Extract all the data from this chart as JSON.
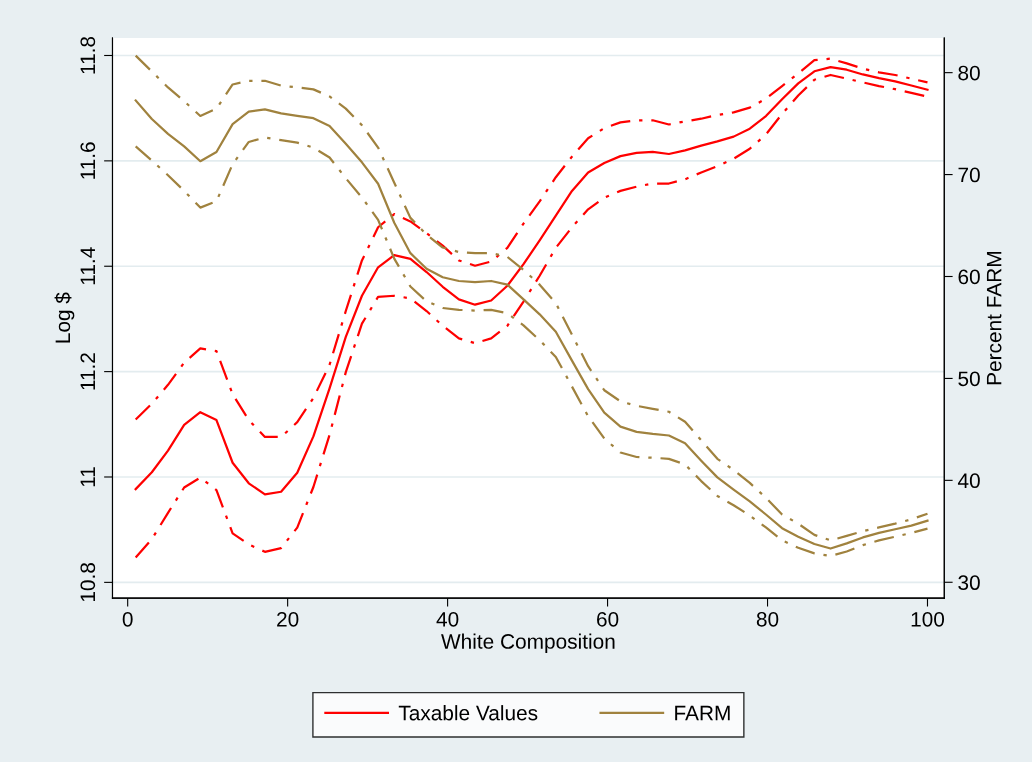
{
  "chart_data": {
    "type": "line",
    "xlabel": "White Composition",
    "ylabel": "Log $",
    "y2label": "Percent FARM",
    "x": [
      1,
      3.02,
      5.04,
      7.06,
      9.08,
      11.1,
      13.12,
      15.14,
      17.16,
      19.18,
      21.2,
      23.22,
      25.24,
      27.27,
      29.29,
      31.31,
      33.33,
      35.35,
      37.37,
      39.39,
      41.41,
      43.43,
      45.45,
      47.47,
      49.49,
      51.51,
      53.53,
      55.55,
      57.57,
      59.59,
      61.61,
      63.63,
      65.65,
      67.67,
      69.69,
      71.71,
      73.73,
      75.76,
      77.78,
      79.8,
      81.82,
      83.84,
      85.86,
      87.88,
      89.9,
      91.92,
      93.94,
      95.96,
      97.98,
      100
    ],
    "xlim": [
      -1.9,
      102.1
    ],
    "xticks": [
      0,
      20,
      40,
      60,
      80,
      100
    ],
    "ylim": [
      10.77,
      11.833
    ],
    "yticks": [
      {
        "value": 10.8,
        "label": "10.8"
      },
      {
        "value": 11,
        "label": "11"
      },
      {
        "value": 11.2,
        "label": "11.2"
      },
      {
        "value": 11.4,
        "label": "11.4"
      },
      {
        "value": 11.6,
        "label": "11.6"
      },
      {
        "value": 11.8,
        "label": "11.8"
      }
    ],
    "y2lim": [
      28.44,
      83.39
    ],
    "y2ticks": [
      30,
      40,
      50,
      60,
      70,
      80
    ],
    "grid": "y",
    "legend": "bottom",
    "series": [
      {
        "name": "Taxable Values",
        "color": "#ff0000",
        "line_style": "solid",
        "values": [
          10.977,
          11.009,
          11.05,
          11.099,
          11.123,
          11.108,
          11.027,
          10.988,
          10.967,
          10.972,
          11.008,
          11.077,
          11.168,
          11.266,
          11.344,
          11.398,
          11.421,
          11.414,
          11.389,
          11.361,
          11.337,
          11.327,
          11.335,
          11.363,
          11.404,
          11.449,
          11.496,
          11.543,
          11.578,
          11.596,
          11.609,
          11.615,
          11.617,
          11.613,
          11.62,
          11.629,
          11.637,
          11.646,
          11.661,
          11.685,
          11.717,
          11.747,
          11.77,
          11.778,
          11.773,
          11.764,
          11.757,
          11.751,
          11.743,
          11.735
        ]
      },
      {
        "color": "#ff0000",
        "line_style": "dashed",
        "values": [
          11.109,
          11.139,
          11.175,
          11.217,
          11.244,
          11.239,
          11.157,
          11.108,
          11.076,
          11.076,
          11.104,
          11.15,
          11.213,
          11.315,
          11.411,
          11.474,
          11.499,
          11.485,
          11.463,
          11.439,
          11.411,
          11.401,
          11.409,
          11.435,
          11.481,
          11.523,
          11.569,
          11.608,
          11.643,
          11.662,
          11.673,
          11.677,
          11.677,
          11.669,
          11.675,
          11.68,
          11.687,
          11.692,
          11.701,
          11.718,
          11.742,
          11.766,
          11.791,
          11.794,
          11.785,
          11.775,
          11.768,
          11.763,
          11.756,
          11.749
        ]
      },
      {
        "color": "#ff0000",
        "line_style": "dashed",
        "values": [
          10.847,
          10.882,
          10.932,
          10.98,
          10.999,
          10.975,
          10.893,
          10.872,
          10.858,
          10.865,
          10.904,
          10.981,
          11.08,
          11.199,
          11.291,
          11.342,
          11.344,
          11.339,
          11.315,
          11.287,
          11.263,
          11.254,
          11.263,
          11.287,
          11.333,
          11.382,
          11.435,
          11.474,
          11.508,
          11.53,
          11.543,
          11.551,
          11.557,
          11.557,
          11.565,
          11.578,
          11.59,
          11.604,
          11.623,
          11.65,
          11.689,
          11.724,
          11.754,
          11.763,
          11.756,
          11.749,
          11.742,
          11.736,
          11.729,
          11.722
        ]
      },
      {
        "name": "FARM",
        "color": "#a0823e",
        "axis": "y2",
        "line_style": "solid",
        "values": [
          77.27,
          75.45,
          74.0,
          72.76,
          71.31,
          72.22,
          74.95,
          76.18,
          76.4,
          76.0,
          75.75,
          75.53,
          74.76,
          73.02,
          71.2,
          69.1,
          65.27,
          62.29,
          60.76,
          59.93,
          59.56,
          59.45,
          59.56,
          59.2,
          57.75,
          56.29,
          54.58,
          51.75,
          48.95,
          46.65,
          45.27,
          44.76,
          44.55,
          44.4,
          43.64,
          41.93,
          40.29,
          39.09,
          37.93,
          36.65,
          35.31,
          34.47,
          33.75,
          33.31,
          33.82,
          34.4,
          34.84,
          35.2,
          35.56,
          36.04
        ]
      },
      {
        "color": "#a0823e",
        "axis": "y2",
        "line_style": "dashed",
        "values": [
          81.67,
          80.11,
          78.55,
          77.2,
          75.75,
          76.47,
          78.84,
          79.2,
          79.2,
          78.73,
          78.55,
          78.36,
          77.67,
          76.47,
          74.84,
          72.65,
          69.2,
          65.75,
          64.11,
          62.84,
          62.4,
          62.29,
          62.29,
          61.93,
          60.65,
          59.2,
          57.38,
          54.29,
          51.2,
          48.84,
          47.75,
          47.31,
          47.02,
          46.73,
          45.75,
          43.93,
          42.11,
          41.02,
          39.75,
          38.29,
          36.65,
          35.75,
          34.65,
          34.11,
          34.55,
          35.02,
          35.38,
          35.75,
          36.18,
          36.73
        ]
      },
      {
        "color": "#a0823e",
        "axis": "y2",
        "line_style": "dashed",
        "values": [
          72.76,
          71.38,
          69.93,
          68.4,
          66.76,
          67.38,
          71.02,
          73.2,
          73.64,
          73.38,
          73.13,
          72.65,
          71.67,
          69.64,
          67.75,
          65.56,
          61.75,
          59.02,
          57.56,
          56.91,
          56.73,
          56.65,
          56.73,
          56.4,
          55.2,
          53.75,
          52.11,
          49.2,
          46.29,
          44.11,
          42.73,
          42.29,
          42.22,
          42.11,
          41.56,
          39.93,
          38.47,
          37.56,
          36.55,
          35.38,
          34.11,
          33.38,
          32.84,
          32.58,
          33.02,
          33.64,
          34.11,
          34.47,
          34.84,
          35.27
        ]
      }
    ]
  }
}
